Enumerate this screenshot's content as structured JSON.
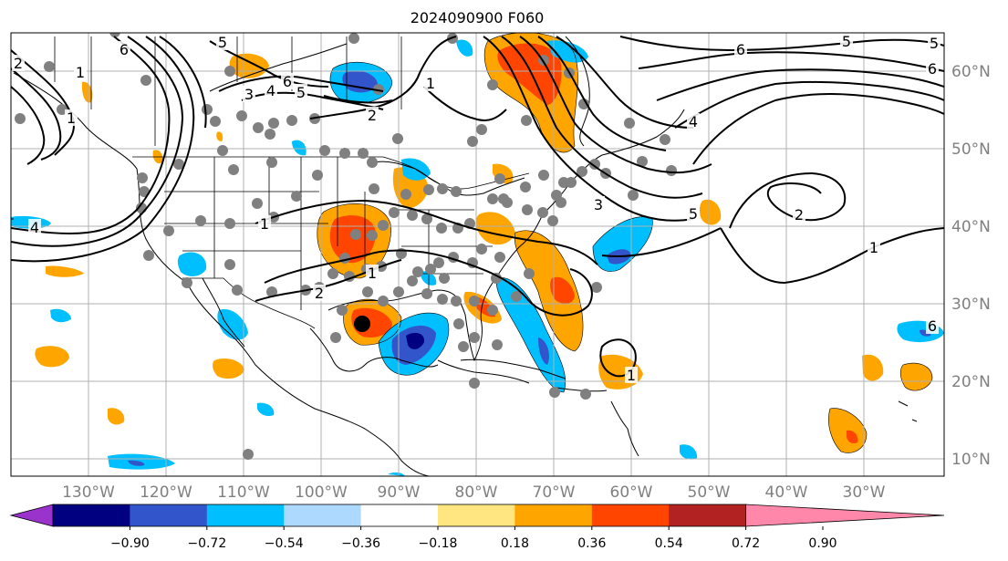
{
  "title": "2024090900 F060",
  "map": {
    "lon_labels": [
      "130°W",
      "120°W",
      "110°W",
      "100°W",
      "90°W",
      "80°W",
      "70°W",
      "60°W",
      "50°W",
      "40°W",
      "30°W"
    ],
    "lat_labels": [
      "60°N",
      "50°N",
      "40°N",
      "30°N",
      "20°N",
      "10°N"
    ],
    "contour_labels": [
      "6",
      "5",
      "3",
      "4",
      "6",
      "2",
      "1",
      "2",
      "1",
      "4",
      "5",
      "6",
      "5",
      "6",
      "4",
      "3",
      "1",
      "2",
      "1",
      "1",
      "2",
      "1",
      "1",
      "5",
      "6",
      "5"
    ]
  },
  "colorbar": {
    "tick_labels": [
      "−0.90",
      "−0.72",
      "−0.54",
      "−0.36",
      "−0.18",
      "0.18",
      "0.36",
      "0.54",
      "0.72",
      "0.90"
    ],
    "colors": [
      "#9933cc",
      "#000080",
      "#3355cc",
      "#00bfff",
      "#add8ff",
      "#ffffff",
      "#ffe680",
      "#ffa500",
      "#ff4500",
      "#b22222",
      "#ff88aa"
    ]
  }
}
